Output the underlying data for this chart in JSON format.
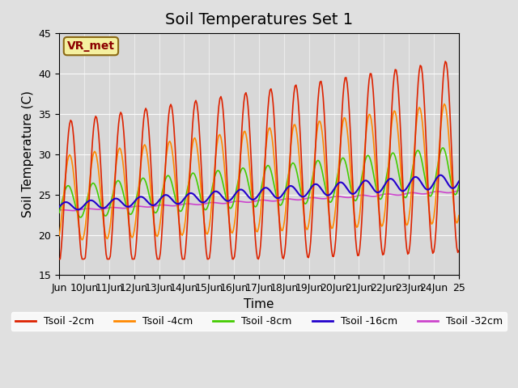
{
  "title": "Soil Temperatures Set 1",
  "xlabel": "Time",
  "ylabel": "Soil Temperature (C)",
  "ylim": [
    15,
    45
  ],
  "xlim": [
    0,
    16
  ],
  "n_days": 16,
  "background_color": "#e0e0e0",
  "plot_bg_color": "#d8d8d8",
  "annotation_text": "VR_met",
  "annotation_bg": "#f5f0a0",
  "annotation_border": "#8b6914",
  "annotation_text_color": "#8b0000",
  "line_colors": {
    "2cm": "#dd2200",
    "4cm": "#ff8800",
    "8cm": "#44cc00",
    "16cm": "#2200cc",
    "32cm": "#cc44cc"
  },
  "legend_labels": [
    "Tsoil -2cm",
    "Tsoil -4cm",
    "Tsoil -8cm",
    "Tsoil -16cm",
    "Tsoil -32cm"
  ],
  "x_tick_labels": [
    "Jun",
    "10Jun",
    "11Jun",
    "12Jun",
    "13Jun",
    "14Jun",
    "15Jun",
    "16Jun",
    "17Jun",
    "18Jun",
    "19Jun",
    "20Jun",
    "21Jun",
    "22Jun",
    "23Jun",
    "24Jun",
    "25"
  ],
  "x_tick_positions": [
    0,
    1,
    2,
    3,
    4,
    5,
    6,
    7,
    8,
    9,
    10,
    11,
    12,
    13,
    14,
    15,
    16
  ],
  "y_ticks": [
    15,
    20,
    25,
    30,
    35,
    40,
    45
  ],
  "title_fontsize": 14,
  "axis_label_fontsize": 11,
  "tick_fontsize": 9,
  "legend_fontsize": 9
}
